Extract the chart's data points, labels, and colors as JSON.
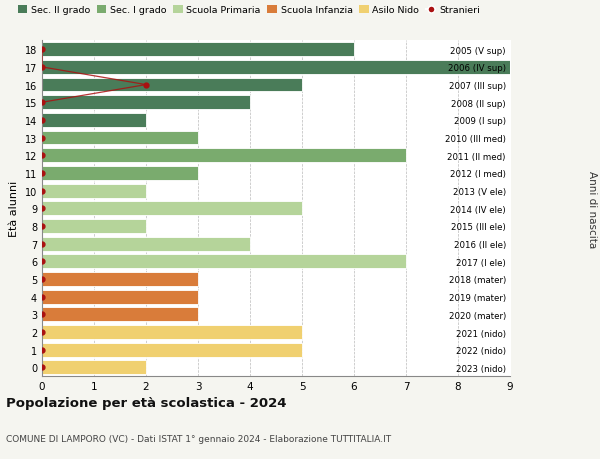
{
  "ages": [
    18,
    17,
    16,
    15,
    14,
    13,
    12,
    11,
    10,
    9,
    8,
    7,
    6,
    5,
    4,
    3,
    2,
    1,
    0
  ],
  "right_labels": [
    "2005 (V sup)",
    "2006 (IV sup)",
    "2007 (III sup)",
    "2008 (II sup)",
    "2009 (I sup)",
    "2010 (III med)",
    "2011 (II med)",
    "2012 (I med)",
    "2013 (V ele)",
    "2014 (IV ele)",
    "2015 (III ele)",
    "2016 (II ele)",
    "2017 (I ele)",
    "2018 (mater)",
    "2019 (mater)",
    "2020 (mater)",
    "2021 (nido)",
    "2022 (nido)",
    "2023 (nido)"
  ],
  "bar_values": [
    6,
    9,
    5,
    4,
    2,
    3,
    7,
    3,
    2,
    5,
    2,
    4,
    7,
    3,
    3,
    3,
    5,
    5,
    2
  ],
  "bar_colors": [
    "#4a7c59",
    "#4a7c59",
    "#4a7c59",
    "#4a7c59",
    "#4a7c59",
    "#7aab6e",
    "#7aab6e",
    "#7aab6e",
    "#b5d49a",
    "#b5d49a",
    "#b5d49a",
    "#b5d49a",
    "#b5d49a",
    "#d97c3a",
    "#d97c3a",
    "#d97c3a",
    "#f0d070",
    "#f0d070",
    "#f0d070"
  ],
  "stranieri_x": [
    0,
    0,
    2,
    0,
    0,
    0,
    0,
    0,
    0,
    0,
    0,
    0,
    0,
    0,
    0,
    0,
    0,
    0,
    0
  ],
  "legend_labels": [
    "Sec. II grado",
    "Sec. I grado",
    "Scuola Primaria",
    "Scuola Infanzia",
    "Asilo Nido",
    "Stranieri"
  ],
  "legend_colors": [
    "#4a7c59",
    "#7aab6e",
    "#b5d49a",
    "#d97c3a",
    "#f0d070",
    "#aa1111"
  ],
  "title": "Popolazione per età scolastica - 2024",
  "subtitle": "COMUNE DI LAMPORO (VC) - Dati ISTAT 1° gennaio 2024 - Elaborazione TUTTITALIA.IT",
  "ylabel_left": "Età alunni",
  "ylabel_right": "Anni di nascita",
  "xlim": [
    0,
    9
  ],
  "background_color": "#f5f5f0",
  "bar_background": "#ffffff"
}
